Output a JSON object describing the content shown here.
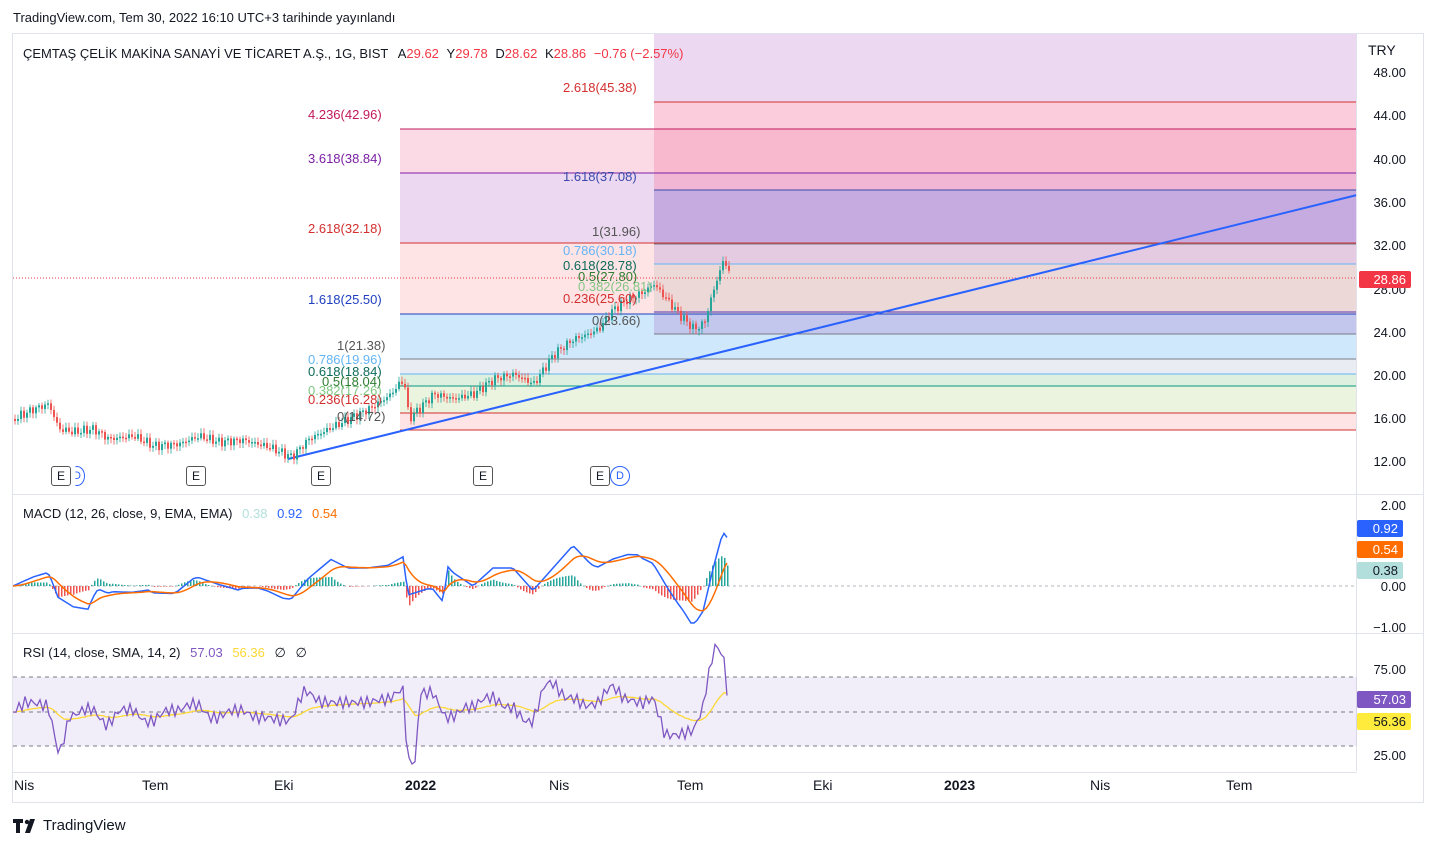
{
  "header": {
    "published": "TradingView.com, Tem 30, 2022 16:10 UTC+3 tarihinde yayınlandı"
  },
  "symbol": {
    "name": "ÇEMTAŞ ÇELİK MAKİNA SANAYİ VE TİCARET A.Ş., 1G, BIST",
    "o_label": "A",
    "o": "29.62",
    "h_label": "Y",
    "h": "29.78",
    "l_label": "D",
    "l": "28.62",
    "c_label": "K",
    "c": "28.86",
    "change": "−0.76 (−2.57%)",
    "currency": "TRY",
    "last_price": "28.86"
  },
  "colors": {
    "up": "#26a69a",
    "down": "#ef5350",
    "trend": "#2962ff",
    "macd": "#2962ff",
    "signal": "#ff6d00",
    "rsi": "#7e57c2",
    "rsi_sma": "#fdd835",
    "red": "#f23645"
  },
  "price_axis": [
    "48.00",
    "44.00",
    "40.00",
    "36.00",
    "32.00",
    "28.00",
    "24.00",
    "20.00",
    "16.00",
    "12.00"
  ],
  "macd_axis": [
    "2.00",
    "0.00",
    "−1.00"
  ],
  "rsi_axis": [
    "75.00",
    "25.00"
  ],
  "time_axis": [
    "Nis",
    "Tem",
    "Eki",
    "2022",
    "Nis",
    "Tem",
    "Eki",
    "2023",
    "Nis",
    "Tem"
  ],
  "fib1": [
    "4.236(42.96)",
    "3.618(38.84)",
    "2.618(32.18)",
    "1.618(25.50)",
    "1(21.38)",
    "0.786(19.96)",
    "0.618(18.84)",
    "0.5(18.04)",
    "0.382(17.26)",
    "0.236(16.28)",
    "0(14.72)"
  ],
  "fib2": [
    "2.618(45.38)",
    "1.618(37.08)",
    "1(31.96)",
    "0.786(30.18)",
    "0.618(28.78)",
    "0.5(27.80)",
    "0.382(26.81)",
    "0.236(25.60)",
    "0(23.66)"
  ],
  "macd": {
    "title": "MACD (12, 26, close, 9, EMA, EMA)",
    "hist": "0.38",
    "macd": "0.92",
    "signal": "0.54"
  },
  "rsi": {
    "title": "RSI (14, close, SMA, 14, 2)",
    "rsi": "57.03",
    "sma": "56.36",
    "extra1": "∅",
    "extra2": "∅"
  },
  "earnings_markers": [
    "E",
    "E",
    "E",
    "E",
    "E"
  ],
  "dividend_marker": "D",
  "brand": "TradingView"
}
